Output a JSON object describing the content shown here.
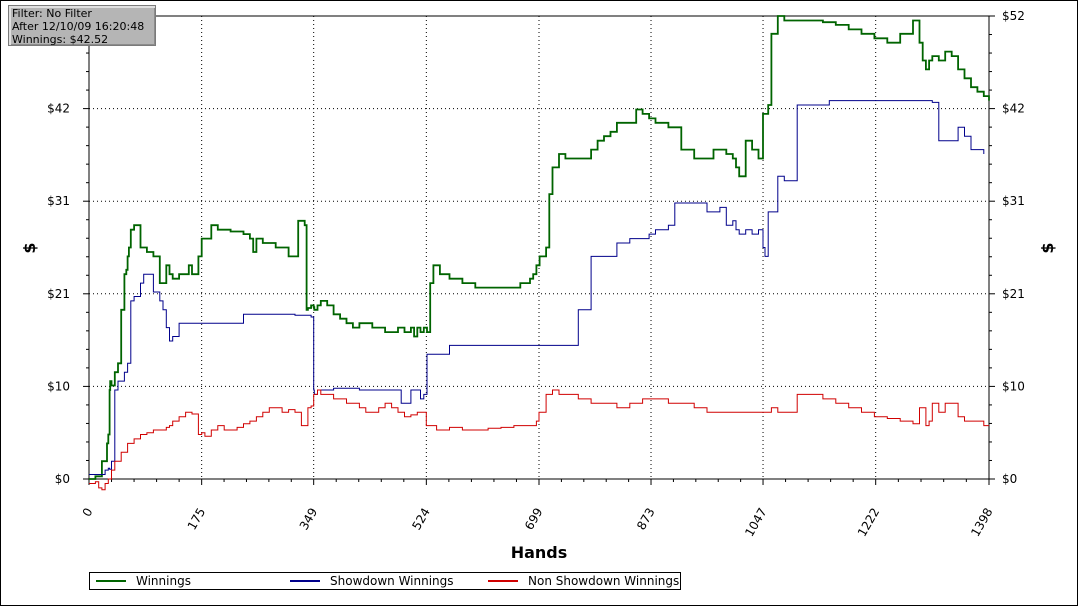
{
  "info_box": {
    "filter": "Filter: No Filter",
    "after": "After 12/10/09 16:20:48",
    "winnings": "Winnings: $42.52"
  },
  "chart_data": {
    "type": "line",
    "xlabel": "Hands",
    "ylabel": "$",
    "ylabel_right": "$",
    "xlim": [
      0,
      1398
    ],
    "ylim": [
      0,
      52
    ],
    "x_ticks": [
      "0",
      "175",
      "349",
      "524",
      "699",
      "873",
      "1047",
      "1222",
      "1398"
    ],
    "x_tick_values": [
      0,
      175,
      349,
      524,
      699,
      873,
      1047,
      1222,
      1398
    ],
    "y_ticks_left": [
      "$0",
      "$10",
      "$21",
      "$31",
      "$42",
      "$52"
    ],
    "y_ticks_right": [
      "$0",
      "$10",
      "$21",
      "$31",
      "$42",
      "$52"
    ],
    "y_tick_values": [
      0,
      10.4,
      20.8,
      31.2,
      41.6,
      52
    ],
    "grid": true,
    "legend_position": "bottom",
    "colors": {
      "Winnings": "#006400",
      "Showdown Winnings": "#00008b",
      "Non Showdown Winnings": "#d00000"
    },
    "series": [
      {
        "name": "Winnings",
        "x": [
          0,
          10,
          15,
          20,
          25,
          28,
          30,
          32,
          33,
          35,
          40,
          45,
          50,
          55,
          58,
          60,
          62,
          65,
          70,
          75,
          80,
          85,
          90,
          100,
          110,
          120,
          125,
          130,
          140,
          150,
          155,
          160,
          170,
          175,
          180,
          190,
          200,
          220,
          240,
          250,
          255,
          260,
          270,
          290,
          310,
          325,
          330,
          335,
          338,
          340,
          345,
          349,
          350,
          355,
          360,
          370,
          380,
          390,
          400,
          410,
          420,
          440,
          460,
          480,
          490,
          500,
          505,
          510,
          515,
          520,
          525,
          530,
          535,
          545,
          560,
          580,
          600,
          620,
          640,
          660,
          670,
          680,
          685,
          690,
          695,
          700,
          710,
          715,
          720,
          730,
          740,
          760,
          780,
          790,
          800,
          810,
          820,
          840,
          850,
          860,
          870,
          880,
          900,
          920,
          930,
          940,
          950,
          970,
          990,
          1000,
          1005,
          1010,
          1020,
          1030,
          1040,
          1047,
          1050,
          1055,
          1060,
          1070,
          1080,
          1100,
          1120,
          1140,
          1160,
          1180,
          1200,
          1220,
          1240,
          1260,
          1280,
          1290,
          1295,
          1300,
          1305,
          1310,
          1320,
          1330,
          1340,
          1350,
          1360,
          1370,
          1380,
          1390,
          1398
        ],
        "y": [
          0,
          0.3,
          0.3,
          2,
          2,
          4,
          5,
          10,
          11,
          10.5,
          12,
          13,
          19,
          23,
          23.5,
          25,
          26,
          28,
          28.5,
          28.5,
          26,
          26,
          25.5,
          25,
          22,
          24,
          23,
          22.5,
          23,
          23,
          24,
          23,
          25,
          27,
          27,
          28.5,
          28,
          27.8,
          27.5,
          27,
          25.5,
          27,
          26.5,
          26,
          25,
          29,
          29,
          28.5,
          19,
          19.2,
          19.5,
          19.3,
          19,
          19.5,
          20,
          19.5,
          18.5,
          18,
          17.5,
          17,
          17.5,
          17,
          16.5,
          17,
          16.5,
          17,
          16,
          17,
          16.5,
          17,
          16.5,
          22,
          24,
          23,
          22.5,
          22,
          21.5,
          21.5,
          21.5,
          21.5,
          22,
          22,
          22.5,
          23,
          24,
          25,
          26,
          32,
          35,
          36.5,
          36,
          36,
          37,
          38,
          38.5,
          39,
          40,
          40,
          41.5,
          41,
          40.5,
          40,
          39.5,
          37,
          37,
          36,
          36,
          37,
          36.5,
          36,
          35,
          34,
          38,
          37,
          36,
          41,
          41,
          42,
          50,
          52,
          51.5,
          51.5,
          51.5,
          51.3,
          51,
          50.5,
          50,
          49.5,
          49,
          50,
          51.5,
          49,
          47,
          46,
          47,
          47.5,
          47,
          48,
          47.5,
          46,
          45,
          44,
          43.5,
          43,
          42.5
        ]
      },
      {
        "name": "Showdown Winnings",
        "x": [
          0,
          15,
          25,
          30,
          32,
          35,
          40,
          45,
          50,
          55,
          60,
          65,
          70,
          75,
          80,
          85,
          90,
          100,
          105,
          110,
          115,
          120,
          125,
          130,
          140,
          150,
          160,
          170,
          175,
          190,
          240,
          260,
          280,
          300,
          320,
          345,
          349,
          350,
          352,
          355,
          360,
          380,
          400,
          420,
          440,
          460,
          480,
          485,
          490,
          500,
          510,
          515,
          520,
          525,
          530,
          540,
          560,
          600,
          640,
          680,
          700,
          705,
          710,
          715,
          720,
          740,
          760,
          780,
          820,
          840,
          860,
          870,
          880,
          900,
          910,
          920,
          940,
          960,
          970,
          980,
          990,
          1000,
          1005,
          1010,
          1020,
          1030,
          1040,
          1047,
          1050,
          1055,
          1060,
          1070,
          1080,
          1100,
          1150,
          1200,
          1250,
          1290,
          1300,
          1310,
          1320,
          1330,
          1340,
          1350,
          1360,
          1370,
          1380,
          1390
        ],
        "y": [
          0.5,
          0.5,
          1,
          1.2,
          1.1,
          2,
          10,
          11,
          11,
          12,
          13,
          20,
          20.5,
          20.5,
          22,
          23,
          23,
          21,
          21,
          20,
          19,
          17,
          15.5,
          16,
          17.5,
          17.5,
          17.5,
          17.5,
          17.5,
          17.5,
          18.5,
          18.5,
          18.5,
          18.5,
          18.4,
          18.2,
          10,
          9.5,
          9.5,
          10,
          10,
          10.2,
          10.2,
          10,
          10,
          10,
          10,
          8.5,
          8.5,
          10,
          10,
          9,
          9.5,
          14,
          14,
          14,
          15,
          15,
          15,
          15,
          15,
          15,
          15,
          15,
          15,
          15,
          19,
          25,
          26.5,
          27,
          27,
          27.5,
          28,
          28.5,
          31,
          31,
          31,
          30,
          30,
          30.5,
          28.5,
          29,
          28,
          27.5,
          28,
          27.5,
          28,
          26,
          25,
          30,
          30,
          34,
          33.5,
          42,
          42.5,
          42.5,
          42.5,
          42.5,
          42.5,
          42.3,
          38,
          38,
          38,
          39.5,
          38.5,
          37,
          37,
          36.5
        ]
      },
      {
        "name": "Non Showdown Winnings",
        "x": [
          0,
          10,
          15,
          20,
          25,
          30,
          35,
          40,
          50,
          60,
          70,
          80,
          90,
          100,
          110,
          120,
          125,
          130,
          140,
          150,
          160,
          170,
          175,
          180,
          190,
          200,
          210,
          220,
          230,
          240,
          250,
          260,
          270,
          280,
          290,
          300,
          310,
          320,
          330,
          340,
          345,
          349,
          355,
          360,
          370,
          380,
          390,
          400,
          410,
          420,
          430,
          440,
          450,
          460,
          470,
          480,
          490,
          500,
          510,
          520,
          524,
          530,
          540,
          550,
          560,
          580,
          600,
          620,
          640,
          660,
          680,
          690,
          695,
          699,
          710,
          720,
          730,
          740,
          760,
          780,
          800,
          820,
          840,
          860,
          880,
          900,
          920,
          940,
          960,
          980,
          1000,
          1020,
          1040,
          1047,
          1060,
          1070,
          1080,
          1100,
          1120,
          1140,
          1160,
          1180,
          1200,
          1220,
          1240,
          1260,
          1280,
          1290,
          1295,
          1300,
          1305,
          1310,
          1320,
          1330,
          1340,
          1350,
          1360,
          1370,
          1380,
          1390,
          1398
        ],
        "y": [
          -0.5,
          -0.3,
          -1,
          -1.2,
          -0.5,
          0,
          1,
          2,
          3,
          4,
          4.5,
          5,
          5.2,
          5.5,
          5.5,
          5.8,
          6,
          6.5,
          7,
          7.5,
          7.3,
          5,
          5.2,
          4.8,
          5.5,
          6,
          5.5,
          5.5,
          5.8,
          6.2,
          6.5,
          7,
          7.5,
          8,
          8,
          7.5,
          7.8,
          7.5,
          6,
          8,
          8.2,
          9.5,
          10,
          9.5,
          9.5,
          9,
          9,
          8.5,
          8.5,
          8,
          7.5,
          7.5,
          8,
          8.5,
          8,
          7.5,
          7,
          7.2,
          7.5,
          7.5,
          6,
          6,
          5.5,
          5.5,
          5.8,
          5.5,
          5.5,
          5.7,
          5.8,
          6,
          6,
          6,
          6.5,
          7.5,
          9.5,
          10,
          9.5,
          9.5,
          9,
          8.5,
          8.5,
          8,
          8.5,
          9,
          9,
          8.5,
          8.5,
          8,
          7.5,
          7.5,
          7.5,
          7.5,
          7.5,
          7.5,
          8,
          7.5,
          7.5,
          9.5,
          9.5,
          9,
          8.5,
          8,
          7.5,
          7,
          6.8,
          6.5,
          6.2,
          8,
          8,
          6,
          6.5,
          8.5,
          7.5,
          8.5,
          8.5,
          7,
          6.5,
          6.5,
          6.5,
          6,
          6
        ]
      }
    ]
  }
}
